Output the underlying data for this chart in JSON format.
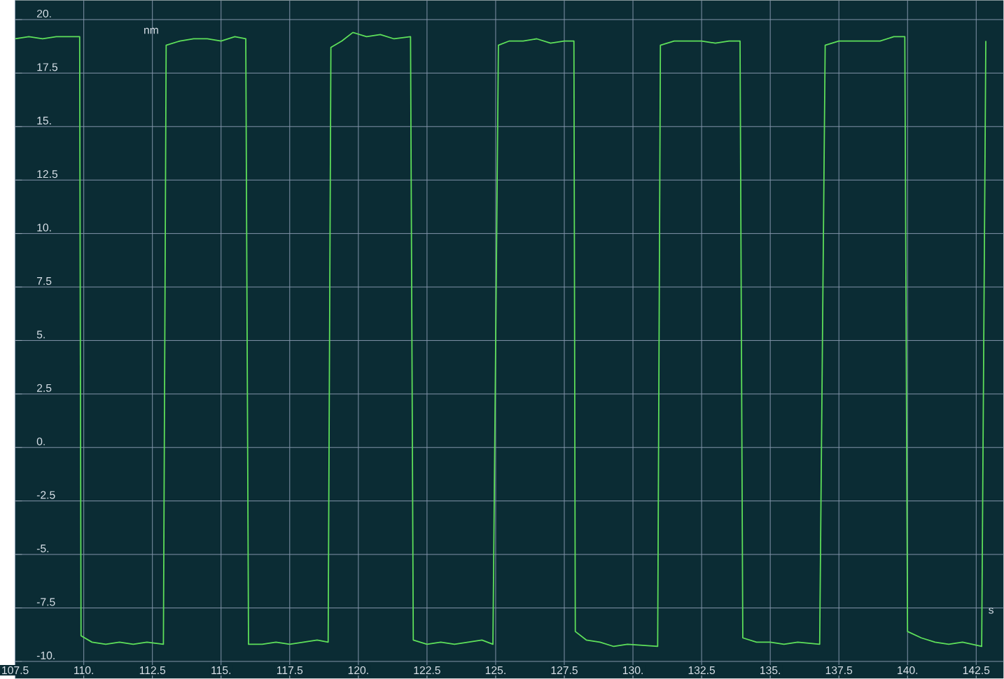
{
  "chart_data": {
    "type": "line",
    "xlabel": "s",
    "ylabel": "nm",
    "series": [
      {
        "color": "#5ee05a",
        "x": [
          107.5,
          108.0,
          108.5,
          109.0,
          109.5,
          109.85,
          109.9,
          110.3,
          110.8,
          111.3,
          111.8,
          112.3,
          112.9,
          113.0,
          113.5,
          114.0,
          114.5,
          115.0,
          115.5,
          115.9,
          116.0,
          116.5,
          117.0,
          117.5,
          118.0,
          118.5,
          118.9,
          119.0,
          119.4,
          119.8,
          120.3,
          120.8,
          121.3,
          121.9,
          122.0,
          122.5,
          123.0,
          123.5,
          124.0,
          124.5,
          124.9,
          125.1,
          125.5,
          126.0,
          126.5,
          127.0,
          127.5,
          127.85,
          127.9,
          128.3,
          128.8,
          129.3,
          129.8,
          130.9,
          131.0,
          131.5,
          132.0,
          132.5,
          133.0,
          133.5,
          133.9,
          134.0,
          134.5,
          135.0,
          135.5,
          136.0,
          136.8,
          137.0,
          137.5,
          138.0,
          138.5,
          139.0,
          139.5,
          139.9,
          140.0,
          140.5,
          141.0,
          141.5,
          142.0,
          142.7,
          142.85
        ],
        "values": [
          19.1,
          19.2,
          19.1,
          19.2,
          19.2,
          19.2,
          -8.8,
          -9.1,
          -9.2,
          -9.1,
          -9.2,
          -9.1,
          -9.2,
          18.8,
          19.0,
          19.1,
          19.1,
          19.0,
          19.2,
          19.1,
          -9.2,
          -9.2,
          -9.1,
          -9.2,
          -9.1,
          -9.0,
          -9.1,
          18.7,
          19.0,
          19.4,
          19.2,
          19.3,
          19.1,
          19.2,
          -9.0,
          -9.2,
          -9.1,
          -9.2,
          -9.1,
          -9.0,
          -9.2,
          18.8,
          19.0,
          19.0,
          19.1,
          18.9,
          19.0,
          19.0,
          -8.6,
          -9.0,
          -9.1,
          -9.3,
          -9.2,
          -9.3,
          18.8,
          19.0,
          19.0,
          19.0,
          18.9,
          19.0,
          19.0,
          -8.9,
          -9.1,
          -9.1,
          -9.2,
          -9.1,
          -9.2,
          18.8,
          19.0,
          19.0,
          19.0,
          19.0,
          19.2,
          19.2,
          -8.6,
          -8.9,
          -9.1,
          -9.2,
          -9.1,
          -9.3,
          19.0
        ]
      }
    ],
    "xlim": [
      107.5,
      143.5
    ],
    "ylim": [
      -10.8,
      20.9
    ],
    "xticks": [
      107.5,
      {
        "value": 110,
        "label": "110."
      },
      112.5,
      {
        "value": 115,
        "label": "115."
      },
      117.5,
      {
        "value": 120,
        "label": "120."
      },
      122.5,
      {
        "value": 125,
        "label": "125."
      },
      127.5,
      {
        "value": 130,
        "label": "130."
      },
      132.5,
      {
        "value": 135,
        "label": "135."
      },
      137.5,
      {
        "value": 140,
        "label": "140."
      },
      142.5
    ],
    "yticks": [
      {
        "value": -10,
        "label": "-10."
      },
      -7.5,
      {
        "value": -5,
        "label": "-5."
      },
      -2.5,
      {
        "value": 0,
        "label": "0."
      },
      2.5,
      {
        "value": 5,
        "label": "5."
      },
      7.5,
      {
        "value": 10,
        "label": "10."
      },
      12.5,
      {
        "value": 15,
        "label": "15."
      },
      17.5,
      {
        "value": 20,
        "label": "20."
      }
    ],
    "grid": true,
    "marker": "none",
    "line_style": "solid"
  }
}
